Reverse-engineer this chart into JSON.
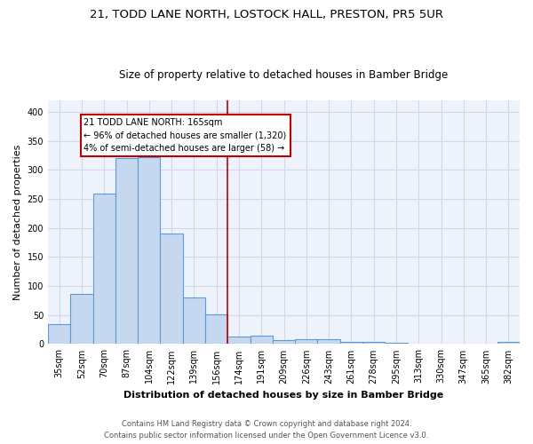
{
  "title": "21, TODD LANE NORTH, LOSTOCK HALL, PRESTON, PR5 5UR",
  "subtitle": "Size of property relative to detached houses in Bamber Bridge",
  "xlabel": "Distribution of detached houses by size in Bamber Bridge",
  "ylabel": "Number of detached properties",
  "categories": [
    "35sqm",
    "52sqm",
    "70sqm",
    "87sqm",
    "104sqm",
    "122sqm",
    "139sqm",
    "156sqm",
    "174sqm",
    "191sqm",
    "209sqm",
    "226sqm",
    "243sqm",
    "261sqm",
    "278sqm",
    "295sqm",
    "313sqm",
    "330sqm",
    "347sqm",
    "365sqm",
    "382sqm"
  ],
  "values": [
    35,
    86,
    260,
    320,
    322,
    190,
    81,
    51,
    13,
    15,
    7,
    9,
    8,
    4,
    3,
    2,
    1,
    1,
    1,
    1,
    4
  ],
  "bar_color": "#c5d8f0",
  "bar_edge_color": "#5b9bd5",
  "marker_line_color": "#c00000",
  "annotation_line1": "21 TODD LANE NORTH: 165sqm",
  "annotation_line2": "← 96% of detached houses are smaller (1,320)",
  "annotation_line3": "4% of semi-detached houses are larger (58) →",
  "annotation_box_color": "#ffffff",
  "annotation_box_edge": "#c00000",
  "ylim": [
    0,
    420
  ],
  "yticks": [
    0,
    50,
    100,
    150,
    200,
    250,
    300,
    350,
    400
  ],
  "grid_color": "#d0d8e8",
  "bg_color": "#eef2fa",
  "footer1": "Contains HM Land Registry data © Crown copyright and database right 2024.",
  "footer2": "Contains public sector information licensed under the Open Government Licence v3.0.",
  "title_fontsize": 9.5,
  "subtitle_fontsize": 8.5,
  "xlabel_fontsize": 8,
  "ylabel_fontsize": 8,
  "tick_fontsize": 7,
  "annotation_fontsize": 7,
  "footer_fontsize": 6
}
